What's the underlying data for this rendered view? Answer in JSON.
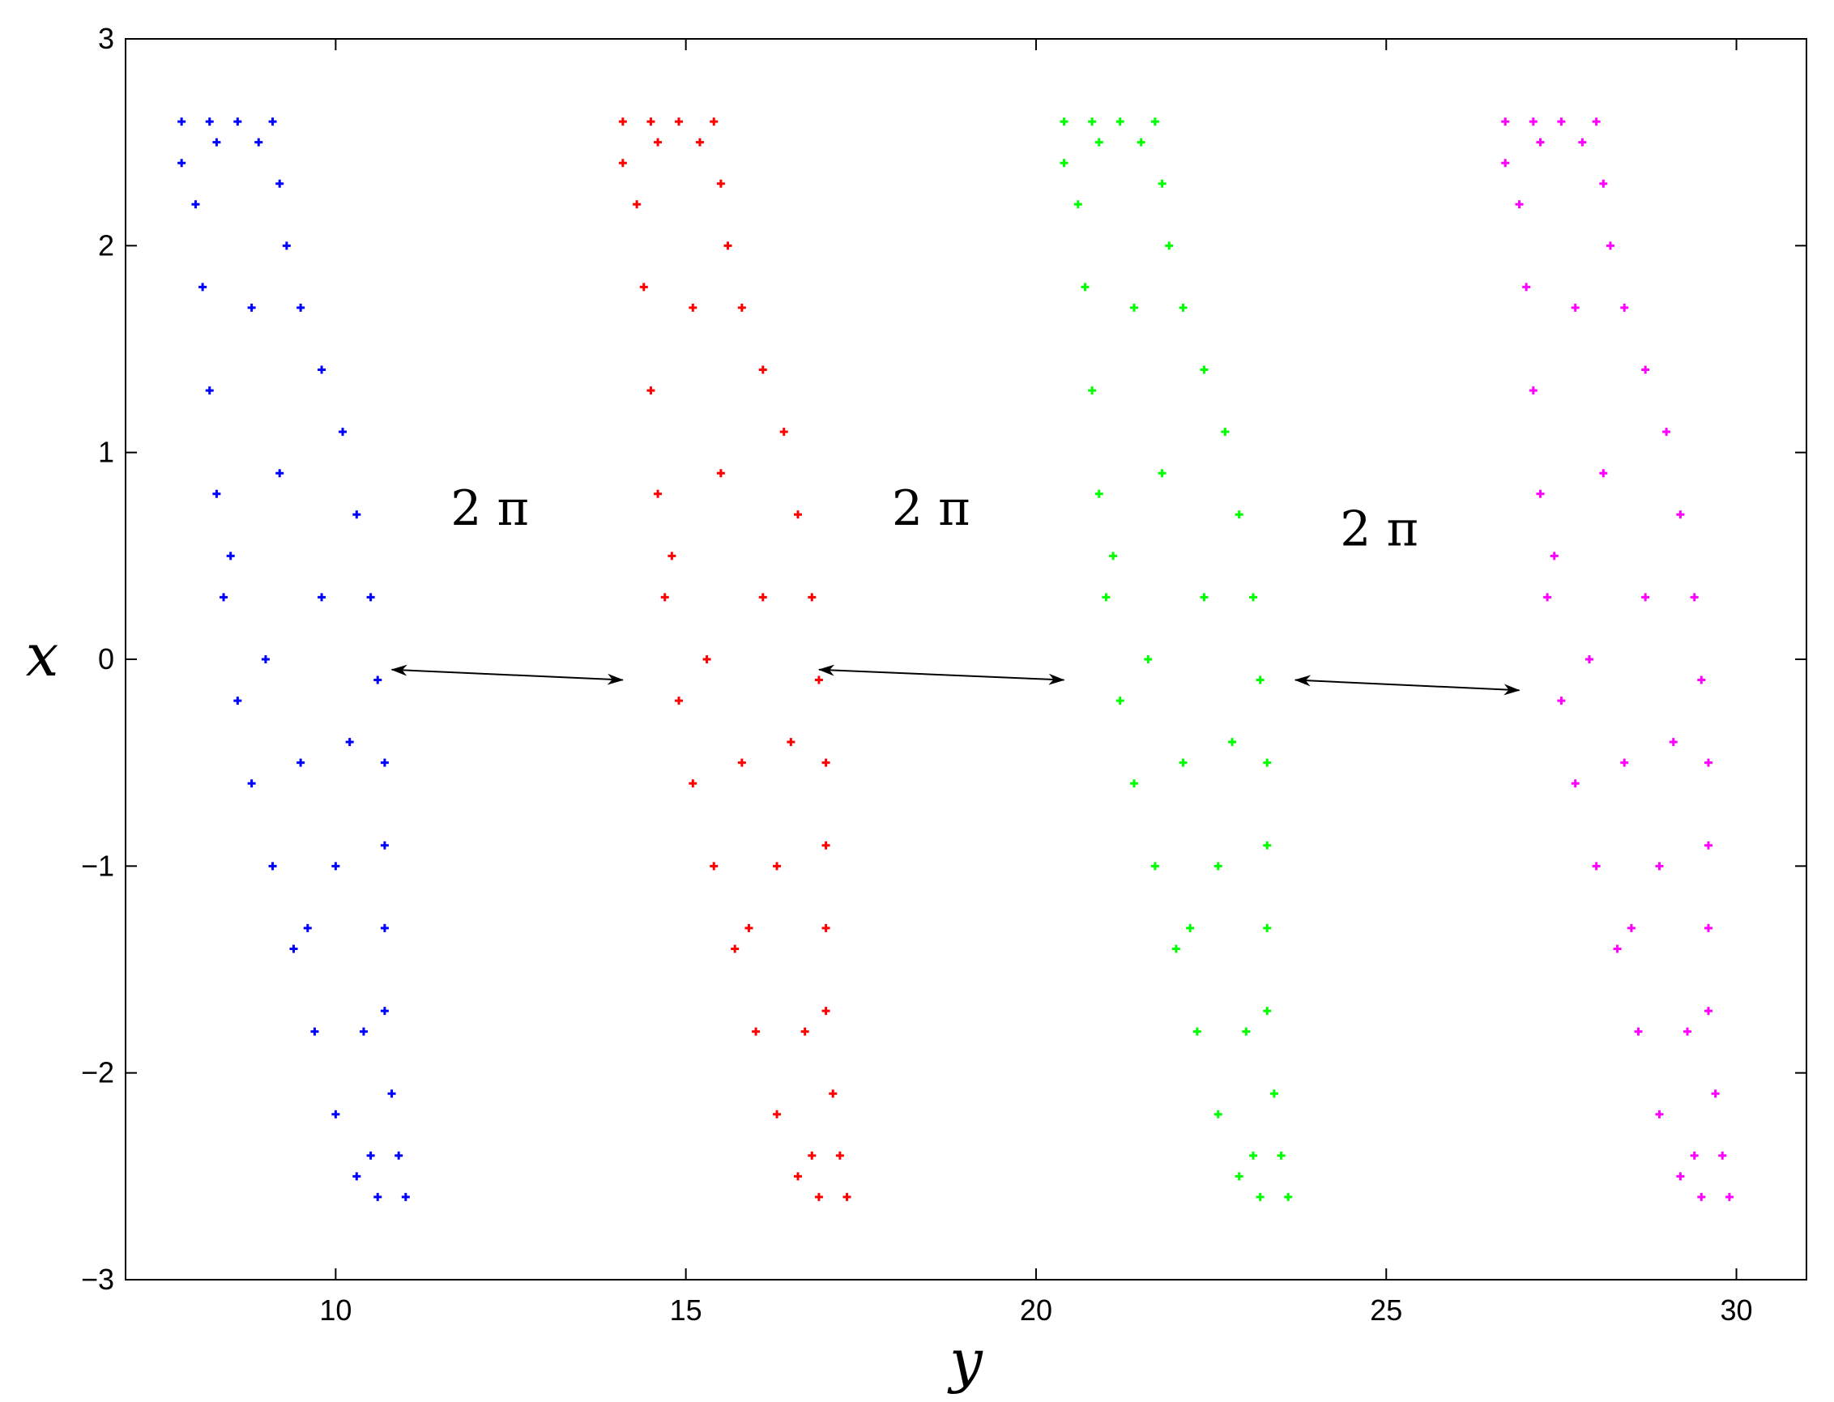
{
  "chart_data": {
    "type": "scatter",
    "title": "",
    "xlabel": "y",
    "ylabel": "x",
    "xlim": [
      7,
      31
    ],
    "ylim": [
      -3,
      3
    ],
    "xticks": [
      10,
      15,
      20,
      25,
      30
    ],
    "xtick_labels": [
      "10",
      "15",
      "20",
      "25",
      "30"
    ],
    "yticks": [
      -3,
      -2,
      -1,
      0,
      1,
      2,
      3
    ],
    "ytick_labels": [
      "−3",
      "−2",
      "−1",
      "0",
      "1",
      "2",
      "3"
    ],
    "grid": false,
    "legend": "none",
    "marker": "+",
    "series": [
      {
        "color": "#0000ff",
        "points": [
          [
            7.8,
            2.6
          ],
          [
            8.2,
            2.6
          ],
          [
            8.6,
            2.6
          ],
          [
            8.9,
            2.5
          ],
          [
            9.2,
            2.3
          ],
          [
            9.3,
            2.0
          ],
          [
            9.5,
            1.7
          ],
          [
            9.8,
            1.4
          ],
          [
            10.1,
            1.1
          ],
          [
            10.3,
            0.7
          ],
          [
            10.5,
            0.3
          ],
          [
            10.6,
            -0.1
          ],
          [
            10.7,
            -0.5
          ],
          [
            10.7,
            -0.9
          ],
          [
            10.7,
            -1.3
          ],
          [
            10.7,
            -1.7
          ],
          [
            10.8,
            -2.1
          ],
          [
            10.9,
            -2.4
          ],
          [
            11.0,
            -2.6
          ],
          [
            10.6,
            -2.6
          ],
          [
            10.3,
            -2.5
          ],
          [
            10.0,
            -2.2
          ],
          [
            9.7,
            -1.8
          ],
          [
            9.4,
            -1.4
          ],
          [
            9.1,
            -1.0
          ],
          [
            8.8,
            -0.6
          ],
          [
            8.6,
            -0.2
          ],
          [
            8.4,
            0.3
          ],
          [
            8.3,
            0.8
          ],
          [
            8.2,
            1.3
          ],
          [
            8.1,
            1.8
          ],
          [
            8.0,
            2.2
          ],
          [
            7.8,
            2.4
          ],
          [
            8.5,
            0.5
          ],
          [
            9.0,
            0.0
          ],
          [
            9.5,
            -0.5
          ],
          [
            10.0,
            -1.0
          ],
          [
            9.2,
            0.9
          ],
          [
            9.8,
            0.3
          ],
          [
            10.2,
            -0.4
          ],
          [
            8.8,
            1.7
          ],
          [
            9.6,
            -1.3
          ],
          [
            10.4,
            -1.8
          ],
          [
            10.5,
            -2.4
          ],
          [
            9.1,
            2.6
          ],
          [
            8.3,
            2.5
          ]
        ]
      },
      {
        "color": "#ff0000",
        "points": [
          [
            14.1,
            2.6
          ],
          [
            14.5,
            2.6
          ],
          [
            14.9,
            2.6
          ],
          [
            15.2,
            2.5
          ],
          [
            15.5,
            2.3
          ],
          [
            15.6,
            2.0
          ],
          [
            15.8,
            1.7
          ],
          [
            16.1,
            1.4
          ],
          [
            16.4,
            1.1
          ],
          [
            16.6,
            0.7
          ],
          [
            16.8,
            0.3
          ],
          [
            16.9,
            -0.1
          ],
          [
            17.0,
            -0.5
          ],
          [
            17.0,
            -0.9
          ],
          [
            17.0,
            -1.3
          ],
          [
            17.0,
            -1.7
          ],
          [
            17.1,
            -2.1
          ],
          [
            17.2,
            -2.4
          ],
          [
            17.3,
            -2.6
          ],
          [
            16.9,
            -2.6
          ],
          [
            16.6,
            -2.5
          ],
          [
            16.3,
            -2.2
          ],
          [
            16.0,
            -1.8
          ],
          [
            15.7,
            -1.4
          ],
          [
            15.4,
            -1.0
          ],
          [
            15.1,
            -0.6
          ],
          [
            14.9,
            -0.2
          ],
          [
            14.7,
            0.3
          ],
          [
            14.6,
            0.8
          ],
          [
            14.5,
            1.3
          ],
          [
            14.4,
            1.8
          ],
          [
            14.3,
            2.2
          ],
          [
            14.1,
            2.4
          ],
          [
            14.8,
            0.5
          ],
          [
            15.3,
            0.0
          ],
          [
            15.8,
            -0.5
          ],
          [
            16.3,
            -1.0
          ],
          [
            15.5,
            0.9
          ],
          [
            16.1,
            0.3
          ],
          [
            16.5,
            -0.4
          ],
          [
            15.1,
            1.7
          ],
          [
            15.9,
            -1.3
          ],
          [
            16.7,
            -1.8
          ],
          [
            16.8,
            -2.4
          ],
          [
            15.4,
            2.6
          ],
          [
            14.6,
            2.5
          ]
        ]
      },
      {
        "color": "#00ff00",
        "points": [
          [
            20.4,
            2.6
          ],
          [
            20.8,
            2.6
          ],
          [
            21.2,
            2.6
          ],
          [
            21.5,
            2.5
          ],
          [
            21.8,
            2.3
          ],
          [
            21.9,
            2.0
          ],
          [
            22.1,
            1.7
          ],
          [
            22.4,
            1.4
          ],
          [
            22.7,
            1.1
          ],
          [
            22.9,
            0.7
          ],
          [
            23.1,
            0.3
          ],
          [
            23.2,
            -0.1
          ],
          [
            23.3,
            -0.5
          ],
          [
            23.3,
            -0.9
          ],
          [
            23.3,
            -1.3
          ],
          [
            23.3,
            -1.7
          ],
          [
            23.4,
            -2.1
          ],
          [
            23.5,
            -2.4
          ],
          [
            23.6,
            -2.6
          ],
          [
            23.2,
            -2.6
          ],
          [
            22.9,
            -2.5
          ],
          [
            22.6,
            -2.2
          ],
          [
            22.3,
            -1.8
          ],
          [
            22.0,
            -1.4
          ],
          [
            21.7,
            -1.0
          ],
          [
            21.4,
            -0.6
          ],
          [
            21.2,
            -0.2
          ],
          [
            21.0,
            0.3
          ],
          [
            20.9,
            0.8
          ],
          [
            20.8,
            1.3
          ],
          [
            20.7,
            1.8
          ],
          [
            20.6,
            2.2
          ],
          [
            20.4,
            2.4
          ],
          [
            21.1,
            0.5
          ],
          [
            21.6,
            0.0
          ],
          [
            22.1,
            -0.5
          ],
          [
            22.6,
            -1.0
          ],
          [
            21.8,
            0.9
          ],
          [
            22.4,
            0.3
          ],
          [
            22.8,
            -0.4
          ],
          [
            21.4,
            1.7
          ],
          [
            22.2,
            -1.3
          ],
          [
            23.0,
            -1.8
          ],
          [
            23.1,
            -2.4
          ],
          [
            21.7,
            2.6
          ],
          [
            20.9,
            2.5
          ]
        ]
      },
      {
        "color": "#ff00ff",
        "points": [
          [
            26.7,
            2.6
          ],
          [
            27.1,
            2.6
          ],
          [
            27.5,
            2.6
          ],
          [
            27.8,
            2.5
          ],
          [
            28.1,
            2.3
          ],
          [
            28.2,
            2.0
          ],
          [
            28.4,
            1.7
          ],
          [
            28.7,
            1.4
          ],
          [
            29.0,
            1.1
          ],
          [
            29.2,
            0.7
          ],
          [
            29.4,
            0.3
          ],
          [
            29.5,
            -0.1
          ],
          [
            29.6,
            -0.5
          ],
          [
            29.6,
            -0.9
          ],
          [
            29.6,
            -1.3
          ],
          [
            29.6,
            -1.7
          ],
          [
            29.7,
            -2.1
          ],
          [
            29.8,
            -2.4
          ],
          [
            29.9,
            -2.6
          ],
          [
            29.5,
            -2.6
          ],
          [
            29.2,
            -2.5
          ],
          [
            28.9,
            -2.2
          ],
          [
            28.6,
            -1.8
          ],
          [
            28.3,
            -1.4
          ],
          [
            28.0,
            -1.0
          ],
          [
            27.7,
            -0.6
          ],
          [
            27.5,
            -0.2
          ],
          [
            27.3,
            0.3
          ],
          [
            27.2,
            0.8
          ],
          [
            27.1,
            1.3
          ],
          [
            27.0,
            1.8
          ],
          [
            26.9,
            2.2
          ],
          [
            26.7,
            2.4
          ],
          [
            27.4,
            0.5
          ],
          [
            27.9,
            0.0
          ],
          [
            28.4,
            -0.5
          ],
          [
            28.9,
            -1.0
          ],
          [
            28.1,
            0.9
          ],
          [
            28.7,
            0.3
          ],
          [
            29.1,
            -0.4
          ],
          [
            27.7,
            1.7
          ],
          [
            28.5,
            -1.3
          ],
          [
            29.3,
            -1.8
          ],
          [
            29.4,
            -2.4
          ],
          [
            28.0,
            2.6
          ],
          [
            27.2,
            2.5
          ]
        ]
      }
    ],
    "annotations": [
      {
        "text": "2 π",
        "x": 12.2,
        "y": 0.65
      },
      {
        "text": "2 π",
        "x": 18.5,
        "y": 0.65
      },
      {
        "text": "2 π",
        "x": 24.9,
        "y": 0.55
      }
    ],
    "arrows": [
      {
        "from": [
          10.8,
          -0.05
        ],
        "to": [
          14.1,
          -0.1
        ]
      },
      {
        "from": [
          16.9,
          -0.05
        ],
        "to": [
          20.4,
          -0.1
        ]
      },
      {
        "from": [
          23.7,
          -0.1
        ],
        "to": [
          26.9,
          -0.15
        ]
      }
    ]
  }
}
